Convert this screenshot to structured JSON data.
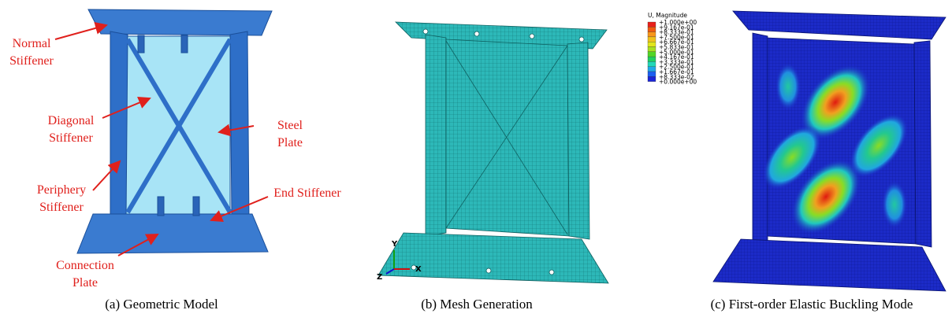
{
  "panels": [
    {
      "caption": "(a) Geometric Model",
      "labels": [
        {
          "lines": [
            "Normal",
            "Stiffener"
          ]
        },
        {
          "lines": [
            "Diagonal",
            "Stiffener"
          ]
        },
        {
          "lines": [
            "Steel",
            "Plate"
          ]
        },
        {
          "lines": [
            "Periphery",
            "Stiffener"
          ]
        },
        {
          "lines": [
            "End Stiffener"
          ]
        },
        {
          "lines": [
            "Connection",
            "Plate"
          ]
        }
      ]
    },
    {
      "caption": "(b) Mesh Generation",
      "axes": [
        "Y",
        "Z",
        "X"
      ]
    },
    {
      "caption": "(c) First-order Elastic Buckling Mode",
      "legend": {
        "title": "U, Magnitude",
        "values": [
          "+1.000e+00",
          "+9.167e-01",
          "+8.333e-01",
          "+7.500e-01",
          "+6.667e-01",
          "+5.833e-01",
          "+5.000e-01",
          "+4.167e-01",
          "+3.333e-01",
          "+2.500e-01",
          "+1.667e-01",
          "+8.333e-02",
          "+0.000e+00"
        ],
        "colors": [
          "#e8201a",
          "#f05a10",
          "#f8961a",
          "#f0c21c",
          "#e2e61c",
          "#a8e020",
          "#52d626",
          "#20d060",
          "#22d8b8",
          "#20a8e8",
          "#1c5ef0",
          "#1a24d8"
        ]
      }
    }
  ]
}
